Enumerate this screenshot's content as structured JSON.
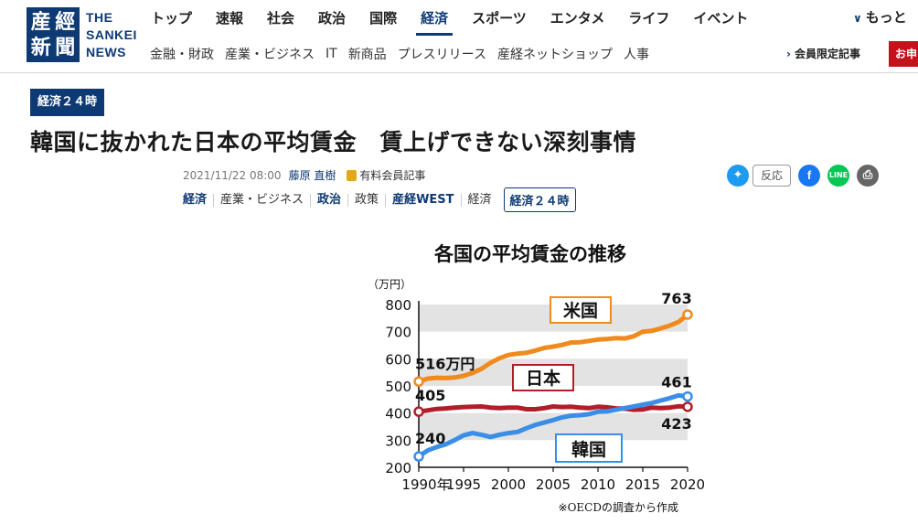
{
  "header": {
    "logo_chars": [
      "産",
      "經",
      "新",
      "聞"
    ],
    "logo_text": [
      "THE",
      "SANKEI",
      "NEWS"
    ],
    "nav_main": [
      "トップ",
      "速報",
      "社会",
      "政治",
      "国際",
      "経済",
      "スポーツ",
      "エンタメ",
      "ライフ",
      "イベント"
    ],
    "nav_active": "経済",
    "nav_more": "もっと",
    "nav_sub": [
      "金融・財政",
      "産業・ビジネス",
      "IT",
      "新商品",
      "プレスリリース",
      "産経ネットショップ",
      "人事"
    ],
    "member_link": "会員限定記事",
    "apply_button": "お申"
  },
  "article": {
    "series": "経済２４時",
    "title": "韓国に抜かれた日本の平均賃金　賃上げできない深刻事情",
    "date": "2021/11/22 08:00",
    "author": "藤原 直樹",
    "paid_label": "有料会員記事",
    "tags": [
      "経済",
      "産業・ビジネス",
      "政治",
      "政策",
      "産経WEST",
      "経済"
    ],
    "tag_box": "経済２４時",
    "react_label": "反応"
  },
  "colors": {
    "brand": "#0e3a73",
    "us": "#f08a1c",
    "japan": "#b01e2a",
    "korea": "#3a8ee6",
    "band": "#e3e3e3"
  },
  "chart_data": {
    "type": "line",
    "title": "各国の平均賃金の推移",
    "ylabel": "（万円）",
    "ylim": [
      200,
      800
    ],
    "yticks": [
      200,
      300,
      400,
      500,
      600,
      700,
      800
    ],
    "xlim": [
      1990,
      2020
    ],
    "xtick_labels": [
      "1990年",
      "1995",
      "2000",
      "2005",
      "2010",
      "2015",
      "2020"
    ],
    "xticks": [
      1990,
      1995,
      2000,
      2005,
      2010,
      2015,
      2020
    ],
    "note": "※OECDの調査から作成",
    "series": [
      {
        "name": "米国",
        "color": "#f08a1c",
        "start_label": "516万円",
        "end_label": "763",
        "x": [
          1990,
          1991,
          1992,
          1993,
          1994,
          1995,
          1996,
          1997,
          1998,
          1999,
          2000,
          2001,
          2002,
          2003,
          2004,
          2005,
          2006,
          2007,
          2008,
          2009,
          2010,
          2011,
          2012,
          2013,
          2014,
          2015,
          2016,
          2017,
          2018,
          2019,
          2020
        ],
        "values": [
          516,
          527,
          530,
          529,
          531,
          537,
          548,
          563,
          585,
          602,
          614,
          619,
          622,
          630,
          640,
          645,
          651,
          660,
          661,
          666,
          671,
          673,
          676,
          675,
          683,
          700,
          703,
          712,
          722,
          736,
          763
        ]
      },
      {
        "name": "日本",
        "color": "#b01e2a",
        "start_label": "405",
        "end_label": "423",
        "x": [
          1990,
          1991,
          1992,
          1993,
          1994,
          1995,
          1996,
          1997,
          1998,
          1999,
          2000,
          2001,
          2002,
          2003,
          2004,
          2005,
          2006,
          2007,
          2008,
          2009,
          2010,
          2011,
          2012,
          2013,
          2014,
          2015,
          2016,
          2017,
          2018,
          2019,
          2020
        ],
        "values": [
          405,
          410,
          415,
          417,
          420,
          422,
          423,
          424,
          420,
          418,
          420,
          420,
          414,
          414,
          418,
          424,
          422,
          423,
          420,
          418,
          423,
          421,
          417,
          416,
          412,
          413,
          420,
          418,
          420,
          425,
          423
        ]
      },
      {
        "name": "韓国",
        "color": "#3a8ee6",
        "start_label": "240",
        "end_label": "461",
        "x": [
          1990,
          1991,
          1992,
          1993,
          1994,
          1995,
          1996,
          1997,
          1998,
          1999,
          2000,
          2001,
          2002,
          2003,
          2004,
          2005,
          2006,
          2007,
          2008,
          2009,
          2010,
          2011,
          2012,
          2013,
          2014,
          2015,
          2016,
          2017,
          2018,
          2019,
          2020
        ],
        "values": [
          240,
          262,
          275,
          285,
          300,
          318,
          326,
          320,
          312,
          320,
          326,
          330,
          344,
          356,
          365,
          374,
          384,
          390,
          392,
          396,
          405,
          406,
          412,
          418,
          424,
          431,
          437,
          446,
          455,
          465,
          461
        ]
      }
    ]
  }
}
